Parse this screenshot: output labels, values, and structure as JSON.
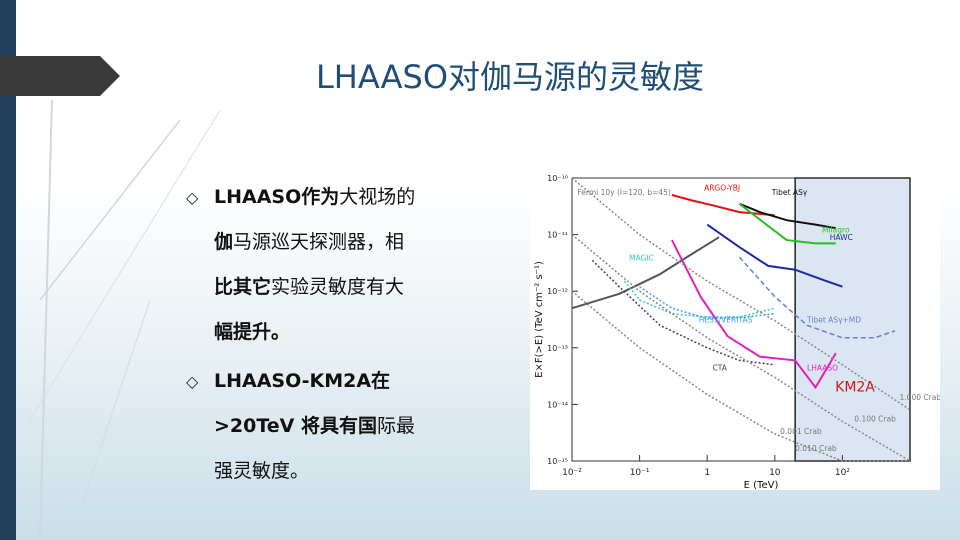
{
  "title": "LHAASO对伽马源的灵敏度",
  "bullets": [
    {
      "marker": "◇",
      "lines": [
        [
          {
            "text": "LHAASO作为",
            "bold": true
          },
          {
            "text": "大视场的",
            "bold": false
          }
        ],
        [
          {
            "text": "伽",
            "bold": true
          },
          {
            "text": "马源巡天探测器，相",
            "bold": false
          }
        ],
        [
          {
            "text": "比其它",
            "bold": true
          },
          {
            "text": "实验灵敏度有大",
            "bold": false
          }
        ],
        [
          {
            "text": "幅提升。",
            "bold": true
          }
        ]
      ]
    },
    {
      "marker": "◇",
      "lines": [
        [
          {
            "text": "LHAASO-KM2A在",
            "bold": true
          }
        ],
        [
          {
            "text": ">20TeV 将具有国",
            "bold": true
          },
          {
            "text": "际最",
            "bold": false
          }
        ],
        [
          {
            "text": "强灵敏度。",
            "bold": false
          }
        ]
      ]
    }
  ],
  "chart_data": {
    "type": "line",
    "x_scale": "log",
    "y_scale": "log",
    "xlim": [
      0.01,
      1000
    ],
    "ylim": [
      1e-15,
      1e-10
    ],
    "xlabel": "E (TeV)",
    "ylabel": "E×F(>E) (TeV cm⁻² s⁻¹)",
    "x_ticks": [
      "10⁻²",
      "10⁻¹",
      "1",
      "10",
      "10²"
    ],
    "y_ticks": [
      "10⁻¹⁰",
      "10⁻¹¹",
      "10⁻¹²",
      "10⁻¹³",
      "10⁻¹⁴",
      "10⁻¹⁵"
    ],
    "highlight": {
      "label": "KM2A",
      "x_from": 20,
      "x_to": 1000
    },
    "series": [
      {
        "name": "Fermi 10y (l=120, b=45)",
        "color": "#555555",
        "style": "solid",
        "x": [
          0.01,
          0.05,
          0.2,
          0.5,
          1.5
        ],
        "y": [
          5e-13,
          9e-13,
          2e-12,
          4e-12,
          9e-12
        ]
      },
      {
        "name": "ARGO-YBJ",
        "color": "#e01010",
        "style": "solid",
        "x": [
          0.3,
          0.6,
          1.2,
          3,
          10
        ],
        "y": [
          5e-11,
          4e-11,
          3.3e-11,
          2.5e-11,
          2.2e-11
        ]
      },
      {
        "name": "Tibet ASγ",
        "color": "#111111",
        "style": "solid",
        "x": [
          3,
          6,
          15,
          40,
          80
        ],
        "y": [
          3.5e-11,
          2.5e-11,
          1.8e-11,
          1.5e-11,
          1.3e-11
        ]
      },
      {
        "name": "Milagro",
        "color": "#20c020",
        "style": "solid",
        "x": [
          3,
          7,
          15,
          40,
          80
        ],
        "y": [
          3.5e-11,
          1.6e-11,
          8e-12,
          7e-12,
          7e-12
        ]
      },
      {
        "name": "HAWC",
        "color": "#1a2aa0",
        "style": "solid",
        "x": [
          1,
          3,
          8,
          20,
          50,
          100
        ],
        "y": [
          1.5e-11,
          6e-12,
          2.8e-12,
          2.4e-12,
          1.6e-12,
          1.2e-12
        ]
      },
      {
        "name": "MAGIC",
        "color": "#30d0b0",
        "style": "dotted",
        "x": [
          0.06,
          0.1,
          0.3,
          1,
          3,
          10
        ],
        "y": [
          1.5e-12,
          7e-13,
          4e-13,
          3.5e-13,
          3.5e-13,
          5e-13
        ]
      },
      {
        "name": "HESS/VERITAS",
        "color": "#40a0f0",
        "style": "dotted",
        "x": [
          0.1,
          0.3,
          1,
          3,
          10
        ],
        "y": [
          1.2e-12,
          5e-13,
          3.3e-13,
          3.4e-13,
          4e-13
        ]
      },
      {
        "name": "CTA",
        "color": "#404060",
        "style": "dotted",
        "x": [
          0.02,
          0.05,
          0.2,
          1,
          3,
          10
        ],
        "y": [
          3.5e-12,
          1.2e-12,
          2.5e-13,
          1e-13,
          6e-14,
          5e-14
        ]
      },
      {
        "name": "LHAASO",
        "color": "#e020c0",
        "style": "solid",
        "x": [
          0.3,
          0.8,
          2,
          6,
          20,
          40,
          80
        ],
        "y": [
          8e-12,
          8e-13,
          1.6e-13,
          7e-14,
          6e-14,
          2e-14,
          8e-14
        ]
      },
      {
        "name": "Tibet ASγ+MD",
        "color": "#6080d0",
        "style": "dashed",
        "x": [
          3,
          10,
          30,
          100,
          300,
          600
        ],
        "y": [
          4e-12,
          8e-13,
          2.5e-13,
          1.5e-13,
          1.5e-13,
          2e-13
        ]
      },
      {
        "name": "1 Crab",
        "color": "#888888",
        "style": "dotted",
        "x": [
          0.01,
          0.1,
          1,
          10,
          100,
          1000
        ],
        "y": [
          1e-10,
          1e-11,
          1.5e-12,
          3e-13,
          5e-14,
          8e-15
        ]
      },
      {
        "name": "0.1 Crab",
        "color": "#888888",
        "style": "dotted",
        "x": [
          0.01,
          0.1,
          1,
          10,
          100,
          1000
        ],
        "y": [
          1e-11,
          1e-12,
          1.5e-13,
          3e-14,
          5e-15,
          1e-15
        ]
      },
      {
        "name": "0.01 Crab",
        "color": "#888888",
        "style": "dotted",
        "x": [
          0.01,
          0.1,
          1,
          10,
          100,
          1000
        ],
        "y": [
          1e-12,
          1e-13,
          1.5e-14,
          3e-15,
          1e-15,
          1e-15
        ]
      }
    ],
    "annotations": [
      {
        "text": "Fermi 10y (l=120, b=45)",
        "color": "#777777",
        "x": 0.012,
        "y": 5e-11
      },
      {
        "text": "ARGO-YBJ",
        "color": "#e01010",
        "x": 0.9,
        "y": 6e-11
      },
      {
        "text": "Tibet ASγ",
        "color": "#111111",
        "x": 9,
        "y": 5e-11
      },
      {
        "text": "Milagro",
        "color": "#20c020",
        "x": 50,
        "y": 1.1e-11
      },
      {
        "text": "HAWC",
        "color": "#1a2aa0",
        "x": 65,
        "y": 8e-12
      },
      {
        "text": "MAGIC",
        "color": "#30d0b0",
        "x": 0.07,
        "y": 3.5e-12
      },
      {
        "text": "HESS/VERITAS",
        "color": "#40a0f0",
        "x": 0.75,
        "y": 2.8e-13
      },
      {
        "text": "Tibet ASγ+MD",
        "color": "#6080d0",
        "x": 30,
        "y": 2.8e-13
      },
      {
        "text": "CTA",
        "color": "#404060",
        "x": 1.2,
        "y": 4e-14
      },
      {
        "text": "LHAASO",
        "color": "#e020c0",
        "x": 30,
        "y": 4e-14
      },
      {
        "text": "1.000 Crab",
        "color": "#777777",
        "x": 700,
        "y": 1.2e-14
      },
      {
        "text": "0.100 Crab",
        "color": "#777777",
        "x": 150,
        "y": 5e-15
      },
      {
        "text": "0.010 Crab",
        "color": "#777777",
        "x": 20,
        "y": 1.5e-15
      },
      {
        "text": "0.001 Crab",
        "color": "#777777",
        "x": 12,
        "y": 3e-15
      }
    ]
  }
}
